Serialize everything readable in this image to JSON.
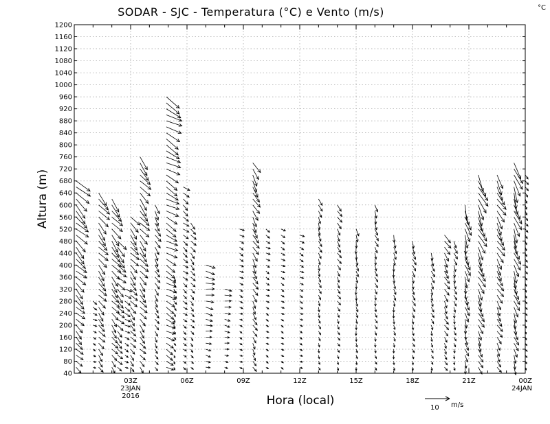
{
  "chart_data": {
    "type": "wind-barb-profile",
    "title": "SODAR - SJC - Temperatura (°C) e Vento (m/s)",
    "unit_corner": "°C",
    "xlabel": "Hora (local)",
    "ylabel": "Altura (m)",
    "xlim_hours": [
      0,
      24
    ],
    "ylim": [
      40,
      1200
    ],
    "yticks": [
      40,
      80,
      120,
      160,
      200,
      240,
      280,
      320,
      360,
      400,
      440,
      480,
      520,
      560,
      600,
      640,
      680,
      720,
      760,
      800,
      840,
      880,
      920,
      960,
      1000,
      1040,
      1080,
      1120,
      1160,
      1200
    ],
    "xticks": [
      {
        "hour": 3,
        "label": "03Z",
        "date": "23JAN",
        "year": "2016"
      },
      {
        "hour": 6,
        "label": "06Z"
      },
      {
        "hour": 9,
        "label": "09Z"
      },
      {
        "hour": 12,
        "label": "12Z"
      },
      {
        "hour": 15,
        "label": "15Z"
      },
      {
        "hour": 18,
        "label": "18Z"
      },
      {
        "hour": 21,
        "label": "21Z"
      },
      {
        "hour": 24,
        "label": "00Z",
        "date": "24JAN"
      }
    ],
    "grid": true,
    "reference_vector": {
      "value": "10",
      "unit": "m/s"
    },
    "profiles": [
      {
        "hour": 0.1,
        "top": 680,
        "dir": 315,
        "speed": 7
      },
      {
        "hour": 1.0,
        "top": 280,
        "dir": 300,
        "speed": 2
      },
      {
        "hour": 1.3,
        "top": 640,
        "dir": 320,
        "speed": 6
      },
      {
        "hour": 2.0,
        "top": 620,
        "dir": 320,
        "speed": 6
      },
      {
        "hour": 2.3,
        "top": 480,
        "dir": 315,
        "speed": 5
      },
      {
        "hour": 2.7,
        "top": 320,
        "dir": 300,
        "speed": 3
      },
      {
        "hour": 3.0,
        "top": 560,
        "dir": 320,
        "speed": 5
      },
      {
        "hour": 3.5,
        "top": 760,
        "dir": 320,
        "speed": 6
      },
      {
        "hour": 4.3,
        "top": 600,
        "dir": 330,
        "speed": 4
      },
      {
        "hour": 4.9,
        "top": 960,
        "dir": 300,
        "speed": 7
      },
      {
        "hour": 5.3,
        "top": 360,
        "dir": 330,
        "speed": 2
      },
      {
        "hour": 5.8,
        "top": 660,
        "dir": 310,
        "speed": 3
      },
      {
        "hour": 6.2,
        "top": 540,
        "dir": 320,
        "speed": 3
      },
      {
        "hour": 7.0,
        "top": 400,
        "dir": 280,
        "speed": 4
      },
      {
        "hour": 8.0,
        "top": 320,
        "dir": 280,
        "speed": 3
      },
      {
        "hour": 8.8,
        "top": 520,
        "dir": 300,
        "speed": 2
      },
      {
        "hour": 9.5,
        "top": 740,
        "dir": 330,
        "speed": 5
      },
      {
        "hour": 10.2,
        "top": 520,
        "dir": 300,
        "speed": 2
      },
      {
        "hour": 11.0,
        "top": 520,
        "dir": 300,
        "speed": 2
      },
      {
        "hour": 12.0,
        "top": 500,
        "dir": 300,
        "speed": 2
      },
      {
        "hour": 13.0,
        "top": 620,
        "dir": 340,
        "speed": 3
      },
      {
        "hour": 14.0,
        "top": 600,
        "dir": 330,
        "speed": 3
      },
      {
        "hour": 15.0,
        "top": 520,
        "dir": 350,
        "speed": 3
      },
      {
        "hour": 16.0,
        "top": 600,
        "dir": 340,
        "speed": 3
      },
      {
        "hour": 17.0,
        "top": 500,
        "dir": 350,
        "speed": 3
      },
      {
        "hour": 18.0,
        "top": 480,
        "dir": 340,
        "speed": 3
      },
      {
        "hour": 19.0,
        "top": 440,
        "dir": 340,
        "speed": 3
      },
      {
        "hour": 19.7,
        "top": 500,
        "dir": 330,
        "speed": 4
      },
      {
        "hour": 20.2,
        "top": 480,
        "dir": 340,
        "speed": 3
      },
      {
        "hour": 20.8,
        "top": 600,
        "dir": 345,
        "speed": 6
      },
      {
        "hour": 21.5,
        "top": 700,
        "dir": 335,
        "speed": 7
      },
      {
        "hour": 22.5,
        "top": 700,
        "dir": 330,
        "speed": 6
      },
      {
        "hour": 23.4,
        "top": 740,
        "dir": 340,
        "speed": 7
      },
      {
        "hour": 24.0,
        "top": 700,
        "dir": 330,
        "speed": 2
      }
    ]
  }
}
